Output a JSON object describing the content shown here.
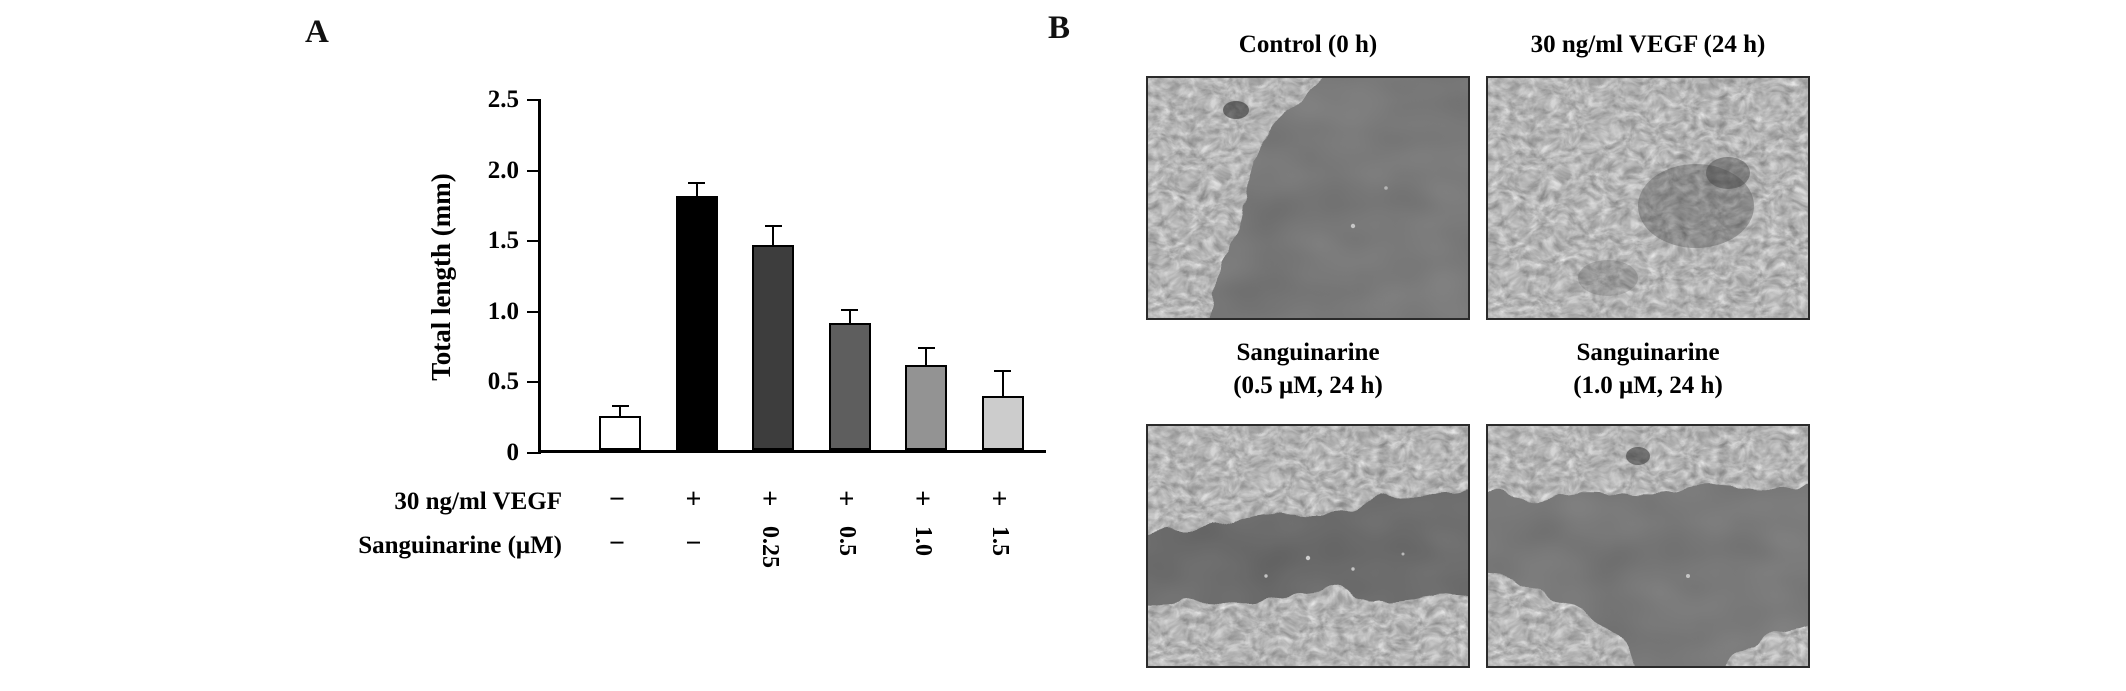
{
  "figure": {
    "panel_a_label": "A",
    "panel_b_label": "B"
  },
  "chart_data": {
    "type": "bar",
    "title": "",
    "ylabel": "Total length (mm)",
    "xlabel": "",
    "ylim": [
      0,
      2.5
    ],
    "yticks": [
      0,
      0.5,
      1.0,
      1.5,
      2.0,
      2.5
    ],
    "ytick_labels": [
      "0",
      "0.5",
      "1.0",
      "1.5",
      "2.0",
      "2.5"
    ],
    "grid": false,
    "legend": null,
    "row_labels": {
      "vegf": "30 ng/ml VEGF",
      "sanguinarine": "Sanguinarine (μM)"
    },
    "bars": [
      {
        "vegf": "−",
        "sanguinarine": "−",
        "value": 0.24,
        "error": 0.07,
        "color": "#ffffff"
      },
      {
        "vegf": "+",
        "sanguinarine": "−",
        "value": 1.8,
        "error": 0.09,
        "color": "#000000"
      },
      {
        "vegf": "+",
        "sanguinarine": "0.25",
        "value": 1.45,
        "error": 0.14,
        "color": "#3d3d3d"
      },
      {
        "vegf": "+",
        "sanguinarine": "0.5",
        "value": 0.9,
        "error": 0.09,
        "color": "#5e5e5e"
      },
      {
        "vegf": "+",
        "sanguinarine": "1.0",
        "value": 0.6,
        "error": 0.12,
        "color": "#939393"
      },
      {
        "vegf": "+",
        "sanguinarine": "1.5",
        "value": 0.38,
        "error": 0.18,
        "color": "#cccccc"
      }
    ]
  },
  "micrographs": [
    {
      "title_lines": [
        "Control (0 h)"
      ]
    },
    {
      "title_lines": [
        "30 ng/ml VEGF (24 h)"
      ]
    },
    {
      "title_lines": [
        "Sanguinarine",
        "(0.5 μM, 24 h)"
      ]
    },
    {
      "title_lines": [
        "Sanguinarine",
        "(1.0 μM, 24 h)"
      ]
    }
  ]
}
